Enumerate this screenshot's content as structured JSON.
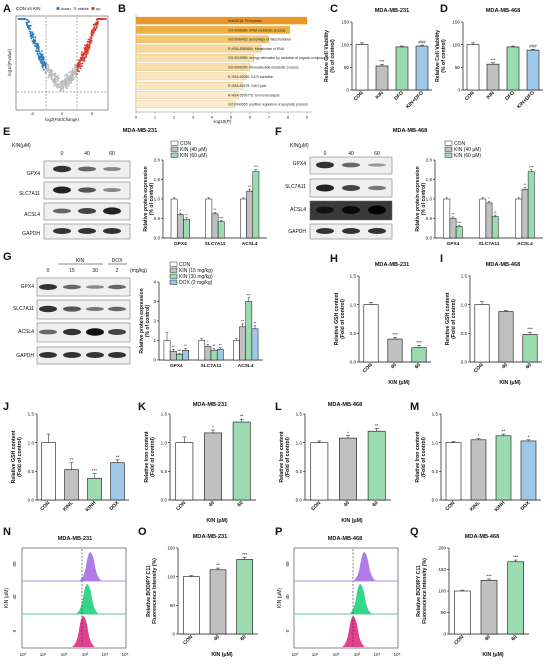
{
  "panels": {
    "A": "A",
    "B": "B",
    "C": "C",
    "D": "D",
    "E": "E",
    "F": "F",
    "G": "G",
    "H": "H",
    "I": "I",
    "J": "J",
    "K": "K",
    "L": "L",
    "M": "M",
    "N": "N",
    "O": "O",
    "P": "P",
    "Q": "Q"
  },
  "common": {
    "x_label_kin_um": "KIN (μM)",
    "kin_um_header": "KIN(μM)",
    "mg_unit": "(mg/kg)",
    "wb": {
      "gpx4": "GPX4",
      "slc7a11": "SLC7A11",
      "acsl4": "ACSL4",
      "gapdh": "GAPDH"
    },
    "y_ratio": "Relative protein expression",
    "y_ratio2": "(% of control)"
  },
  "volcano": {
    "legend": "CON vs KIN",
    "legend_items": [
      "down",
      "stable",
      "up"
    ],
    "xlabel": "log2(FoldChange)",
    "ylabel": "-log10(P.value)",
    "xticks": [
      "-5",
      "0",
      "5"
    ],
    "down_color": "#2b7fbf",
    "up_color": "#d83a2a",
    "stable_color": "#bbbbbb"
  },
  "enrich": {
    "xlabel": "-log10(P)",
    "xticks": [
      "0",
      "1",
      "2",
      "3",
      "4",
      "5",
      "6",
      "7",
      "8",
      "9"
    ],
    "bar_colors": [
      "#e9962a",
      "#f0b040",
      "#f4c870",
      "#f7d898",
      "#f8e0ad",
      "#f8e0ad",
      "#fae8c2",
      "#fae8c2",
      "#fbecd0",
      "#fbecd0"
    ],
    "terms": [
      "hsa04216: Ferroptosis",
      "GO:0006396: tRNA metabolic process",
      "GO:0000423: autophagy of mitochondrion",
      "R-HSA-8953854: Metabolism of RNA",
      "GO:0015980: energy derivation by oxidation of organic compounds",
      "GO:0009259: ribonucleotide metabolic process",
      "R-HSA-69206: G1/S transition",
      "R-HSA-69278: Cell Cycle",
      "R-HSA-5578775: Ion homeostasis",
      "GO:0043065: positive regulation of apoptotic process"
    ],
    "values": [
      9.0,
      8.1,
      7.0,
      6.6,
      6.2,
      6.0,
      5.8,
      5.6,
      5.4,
      5.2
    ]
  },
  "wb_e": {
    "title": "MDA-MB-231",
    "doses": [
      "0",
      "40",
      "60"
    ]
  },
  "wb_f": {
    "title": "MDA-MB-468",
    "doses": [
      "0",
      "40",
      "60"
    ]
  },
  "wb_g": {
    "group_kin": "KIN",
    "group_dox": "DOX",
    "doses": [
      "0",
      "15",
      "30",
      "2"
    ]
  },
  "flow": {
    "n_title": "MDA-MB-231",
    "p_title": "MDA-MB-468",
    "ylabel": "KIN (μM)",
    "rows": [
      "60",
      "40",
      "0"
    ],
    "colors": [
      "#b07be6",
      "#36d68a",
      "#e0408f"
    ],
    "xticks": [
      "10⁰",
      "10¹",
      "10²",
      "10³",
      "10⁴",
      "10⁵"
    ]
  },
  "chart_data": [
    {
      "id": "C",
      "type": "bar",
      "title": "MDA-MB-231",
      "ylabel": "Relative Cell Viability",
      "ylabel2": "(% of control)",
      "categories": [
        "CON",
        "KIN",
        "DFO",
        "KIN+DFO"
      ],
      "values": [
        100,
        53,
        95,
        97
      ],
      "errors": [
        4,
        3,
        2,
        2
      ],
      "ylim": [
        0,
        150
      ],
      "yticks": [
        "0",
        "50",
        "100",
        "150"
      ],
      "colors": [
        "#ffffff",
        "#c0c0c0",
        "#9adcb0",
        "#9ec7e8"
      ],
      "sig": [
        "",
        "***",
        "",
        "###"
      ]
    },
    {
      "id": "D",
      "type": "bar",
      "title": "MDA-MB-468",
      "ylabel": "Relative Cell Viability",
      "ylabel2": "(% of control)",
      "categories": [
        "CON",
        "KIN",
        "DFO",
        "KIN+DFO"
      ],
      "values": [
        100,
        57,
        95,
        88
      ],
      "errors": [
        4,
        3,
        2,
        2
      ],
      "ylim": [
        0,
        150
      ],
      "yticks": [
        "0",
        "50",
        "100",
        "150"
      ],
      "colors": [
        "#ffffff",
        "#c0c0c0",
        "#9adcb0",
        "#9ec7e8"
      ],
      "sig": [
        "",
        "***",
        "",
        "###"
      ]
    },
    {
      "id": "E",
      "type": "bar",
      "categories": [
        "GPX4",
        "SLC7A11",
        "ACSL4"
      ],
      "ylim": [
        0,
        2
      ],
      "yticks": [
        "0.0",
        "0.5",
        "1.0",
        "1.5",
        "2.0"
      ],
      "series": [
        {
          "name": "CON",
          "values": [
            1.0,
            1.0,
            1.0
          ],
          "color": "#ffffff"
        },
        {
          "name": "KIN (40 μM)",
          "values": [
            0.6,
            0.62,
            1.2
          ],
          "color": "#c0c0c0"
        },
        {
          "name": "KIN (60 μM)",
          "values": [
            0.48,
            0.42,
            1.7
          ],
          "color": "#9adcb0"
        }
      ],
      "errors": [
        [
          0.03,
          0.03,
          0.03
        ],
        [
          0.04,
          0.04,
          0.05
        ],
        [
          0.04,
          0.03,
          0.06
        ]
      ],
      "sig": [
        [
          "",
          "",
          ""
        ],
        [
          "*",
          "**",
          "**"
        ],
        [
          "**",
          "***",
          "***"
        ]
      ]
    },
    {
      "id": "F",
      "type": "bar",
      "categories": [
        "GPX4",
        "SLC7A11",
        "ACSL4"
      ],
      "ylim": [
        0,
        2
      ],
      "yticks": [
        "0.0",
        "0.5",
        "1.0",
        "1.5",
        "2.0"
      ],
      "series": [
        {
          "name": "CON",
          "values": [
            1.0,
            1.0,
            1.0
          ],
          "color": "#ffffff"
        },
        {
          "name": "KIN (40 μM)",
          "values": [
            0.5,
            0.9,
            1.25
          ],
          "color": "#c0c0c0"
        },
        {
          "name": "KIN (60 μM)",
          "values": [
            0.3,
            0.55,
            1.7
          ],
          "color": "#9adcb0"
        }
      ],
      "errors": [
        [
          0.03,
          0.03,
          0.03
        ],
        [
          0.04,
          0.04,
          0.05
        ],
        [
          0.03,
          0.04,
          0.05
        ]
      ],
      "sig": [
        [
          "",
          "",
          ""
        ],
        [
          "**",
          "*",
          "**"
        ],
        [
          "***",
          "**",
          "***"
        ]
      ]
    },
    {
      "id": "G",
      "type": "bar",
      "categories": [
        "GPX4",
        "SLC7A11",
        "ACSL4"
      ],
      "ylim": [
        0,
        4
      ],
      "yticks": [
        "0",
        "1",
        "2",
        "3",
        "4"
      ],
      "series": [
        {
          "name": "CON",
          "values": [
            1.0,
            1.0,
            1.0
          ],
          "color": "#ffffff"
        },
        {
          "name": "KIN (15 mg/kg)",
          "values": [
            0.45,
            0.7,
            1.7
          ],
          "color": "#c0c0c0"
        },
        {
          "name": "KIN (30 mg/kg)",
          "values": [
            0.3,
            0.5,
            3.0
          ],
          "color": "#9adcb0"
        },
        {
          "name": "DOX (2 mg/kg)",
          "values": [
            0.5,
            0.55,
            1.6
          ],
          "color": "#9ec7e8"
        }
      ],
      "errors": [
        [
          0.4,
          0.1,
          0.1
        ],
        [
          0.1,
          0.1,
          0.15
        ],
        [
          0.05,
          0.1,
          0.2
        ],
        [
          0.1,
          0.08,
          0.15
        ]
      ],
      "sig": [
        [
          "",
          "",
          ""
        ],
        [
          "**",
          "*",
          "**"
        ],
        [
          "***",
          "**",
          "***"
        ],
        [
          "**",
          "**",
          "**"
        ]
      ]
    },
    {
      "id": "H",
      "type": "bar",
      "title": "MDA-MB-231",
      "ylabel": "Relative GSH content",
      "ylabel2": "(Fold of control)",
      "xlabel": "KIN (μM)",
      "categories": [
        "CON",
        "40",
        "60"
      ],
      "values": [
        1.0,
        0.4,
        0.25
      ],
      "errors": [
        0.04,
        0.03,
        0.04
      ],
      "ylim": [
        0,
        1.5
      ],
      "yticks": [
        "0.0",
        "0.5",
        "1.0",
        "1.5"
      ],
      "colors": [
        "#ffffff",
        "#c0c0c0",
        "#9adcb0"
      ],
      "sig": [
        "",
        "***",
        "***"
      ]
    },
    {
      "id": "I",
      "type": "bar",
      "title": "MDA-MB-468",
      "ylabel": "Relative GSH content",
      "ylabel2": "(Fold of control)",
      "xlabel": "KIN (μM)",
      "categories": [
        "CON",
        "40",
        "60"
      ],
      "values": [
        1.0,
        0.88,
        0.48
      ],
      "errors": [
        0.05,
        0.02,
        0.04
      ],
      "ylim": [
        0,
        1.5
      ],
      "yticks": [
        "0.0",
        "0.5",
        "1.0",
        "1.5"
      ],
      "colors": [
        "#ffffff",
        "#c0c0c0",
        "#9adcb0"
      ],
      "sig": [
        "",
        "",
        "***"
      ]
    },
    {
      "id": "J",
      "type": "bar",
      "ylabel": "Relative GSH content",
      "ylabel2": "(Fold of control)",
      "categories": [
        "CON",
        "KINL",
        "KINH",
        "DOX"
      ],
      "values": [
        1.0,
        0.53,
        0.38,
        0.65
      ],
      "errors": [
        0.15,
        0.12,
        0.08,
        0.05
      ],
      "ylim": [
        0,
        1.5
      ],
      "yticks": [
        "0.0",
        "0.5",
        "1.0",
        "1.5"
      ],
      "colors": [
        "#ffffff",
        "#c0c0c0",
        "#9adcb0",
        "#9ec7e8"
      ],
      "sig": [
        "",
        "**",
        "***",
        "**"
      ]
    },
    {
      "id": "K",
      "type": "bar",
      "title": "MDA-MB-231",
      "ylabel": "Relative Iron content",
      "ylabel2": "(Fold of control)",
      "xlabel": "KIN (μM)",
      "categories": [
        "CON",
        "40",
        "60"
      ],
      "values": [
        1.0,
        1.17,
        1.36
      ],
      "errors": [
        0.1,
        0.05,
        0.05
      ],
      "ylim": [
        0,
        1.5
      ],
      "yticks": [
        "0.0",
        "0.5",
        "1.0",
        "1.5"
      ],
      "colors": [
        "#ffffff",
        "#c0c0c0",
        "#9adcb0"
      ],
      "sig": [
        "",
        "*",
        "**"
      ]
    },
    {
      "id": "L",
      "type": "bar",
      "title": "MDA-MB-468",
      "ylabel": "Relative Iron content",
      "ylabel2": "(Fold of control)",
      "xlabel": "KIN (μM)",
      "categories": [
        "CON",
        "40",
        "60"
      ],
      "values": [
        1.0,
        1.08,
        1.2
      ],
      "errors": [
        0.03,
        0.04,
        0.05
      ],
      "ylim": [
        0,
        1.5
      ],
      "yticks": [
        "0.0",
        "0.5",
        "1.0",
        "1.5"
      ],
      "colors": [
        "#ffffff",
        "#c0c0c0",
        "#9adcb0"
      ],
      "sig": [
        "",
        "*",
        "**"
      ]
    },
    {
      "id": "M",
      "type": "bar",
      "ylabel": "Relative Iron content",
      "ylabel2": "(Fold of control)",
      "categories": [
        "CON",
        "KINL",
        "KINH",
        "DOX"
      ],
      "values": [
        1.0,
        1.05,
        1.12,
        1.03
      ],
      "errors": [
        0.02,
        0.02,
        0.03,
        0.02
      ],
      "ylim": [
        0,
        1.5
      ],
      "yticks": [
        "0.0",
        "0.5",
        "1.0",
        "1.5"
      ],
      "colors": [
        "#ffffff",
        "#c0c0c0",
        "#9adcb0",
        "#9ec7e8"
      ],
      "sig": [
        "",
        "*",
        "**",
        "*"
      ]
    },
    {
      "id": "O",
      "type": "bar",
      "title": "MDA-MB-231",
      "ylabel": "Relative BODIPY C11",
      "ylabel2": "Fluorescence Intensity (%)",
      "xlabel": "KIN (μM)",
      "categories": [
        "CON",
        "40",
        "60"
      ],
      "values": [
        100,
        112,
        130
      ],
      "errors": [
        2,
        3,
        3
      ],
      "ylim": [
        0,
        150
      ],
      "yticks": [
        "0",
        "50",
        "100",
        "150"
      ],
      "colors": [
        "#ffffff",
        "#c0c0c0",
        "#9adcb0"
      ],
      "sig": [
        "",
        "**",
        "***"
      ]
    },
    {
      "id": "Q",
      "type": "bar",
      "title": "MDA-MB-468",
      "ylabel": "Relative BODIPY C11",
      "ylabel2": "Fluorescence Intensity (%)",
      "xlabel": "KIN (μM)",
      "categories": [
        "CON",
        "40",
        "60"
      ],
      "values": [
        100,
        125,
        168
      ],
      "errors": [
        2,
        3,
        4
      ],
      "ylim": [
        0,
        200
      ],
      "yticks": [
        "0",
        "50",
        "100",
        "150",
        "200"
      ],
      "colors": [
        "#ffffff",
        "#c0c0c0",
        "#9adcb0"
      ],
      "sig": [
        "",
        "***",
        "***"
      ]
    }
  ]
}
